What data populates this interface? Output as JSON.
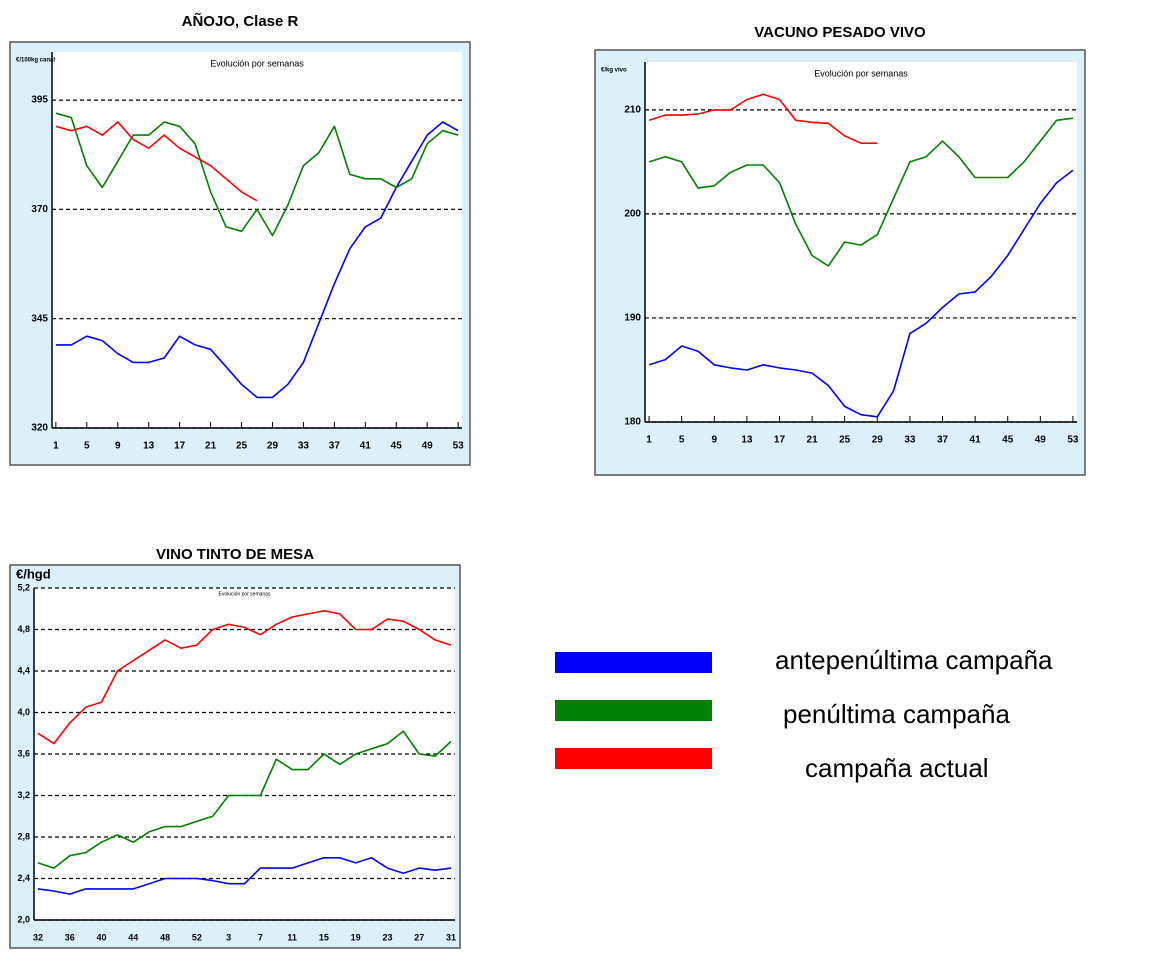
{
  "chart_data": [
    {
      "type": "line",
      "title": "AÑOJO, Clase R",
      "subtitle": "Evolución por semanas",
      "y_label": "€/100kg canal",
      "x": [
        1,
        3,
        5,
        7,
        9,
        11,
        13,
        15,
        17,
        19,
        21,
        23,
        25,
        27,
        29,
        31,
        33,
        35,
        37,
        39,
        41,
        43,
        45,
        47,
        49,
        51,
        53
      ],
      "xlim": [
        0.5,
        53.5
      ],
      "xticks": [
        1,
        5,
        9,
        13,
        17,
        21,
        25,
        29,
        33,
        37,
        41,
        45,
        49,
        53
      ],
      "ylim": [
        320,
        406
      ],
      "yticks": [
        320,
        345,
        370,
        395
      ],
      "grid": true,
      "series": [
        {
          "color": "#0000ff",
          "values": [
            339,
            339,
            341,
            340,
            337,
            335,
            335,
            336,
            341,
            339,
            338,
            334,
            330,
            327,
            327,
            330,
            335,
            344,
            353,
            361,
            366,
            368,
            375,
            381,
            387,
            390,
            388
          ]
        },
        {
          "color": "#008000",
          "values": [
            392,
            391,
            380,
            375,
            381,
            387,
            387,
            390,
            389,
            385,
            374,
            366,
            365,
            370,
            364,
            371,
            380,
            383,
            389,
            378,
            377,
            377,
            375,
            377,
            385,
            388,
            387
          ]
        },
        {
          "color": "#ff0000",
          "values": [
            389,
            388,
            389,
            387,
            390,
            386,
            384,
            387,
            384,
            382,
            380,
            377,
            374,
            372,
            null,
            null,
            null,
            null,
            null,
            null,
            null,
            null,
            null,
            null,
            null,
            null,
            null
          ]
        }
      ]
    },
    {
      "type": "line",
      "title": "VACUNO PESADO VIVO",
      "subtitle": "Evolución por semanas",
      "y_label": "€/kg vivo",
      "x": [
        1,
        3,
        5,
        7,
        9,
        11,
        13,
        15,
        17,
        19,
        21,
        23,
        25,
        27,
        29,
        31,
        33,
        35,
        37,
        39,
        41,
        43,
        45,
        47,
        49,
        51,
        53
      ],
      "xlim": [
        0.5,
        53.5
      ],
      "xticks": [
        1,
        5,
        9,
        13,
        17,
        21,
        25,
        29,
        33,
        37,
        41,
        45,
        49,
        53
      ],
      "ylim": [
        180,
        214.6
      ],
      "yticks": [
        180,
        190,
        200,
        210
      ],
      "grid": true,
      "series": [
        {
          "color": "#0000ff",
          "values": [
            185.5,
            186,
            187.3,
            186.8,
            185.5,
            185.2,
            185,
            185.5,
            185.2,
            185,
            184.7,
            183.5,
            181.5,
            180.7,
            180.5,
            183,
            188.5,
            189.5,
            191,
            192.3,
            192.5,
            194,
            196,
            198.5,
            201,
            203,
            204.2
          ]
        },
        {
          "color": "#008000",
          "values": [
            205,
            205.5,
            205,
            202.5,
            202.7,
            204,
            204.7,
            204.7,
            203,
            199,
            196,
            195,
            197.3,
            197,
            198,
            201.5,
            205,
            205.5,
            207,
            205.5,
            203.5,
            203.5,
            203.5,
            205,
            207,
            209,
            209.2
          ]
        },
        {
          "color": "#ff0000",
          "values": [
            209,
            209.5,
            209.5,
            209.6,
            210,
            210,
            211,
            211.5,
            211,
            209,
            208.8,
            208.7,
            207.5,
            206.8,
            206.8,
            null,
            null,
            null,
            null,
            null,
            null,
            null,
            null,
            null,
            null,
            null,
            null
          ]
        }
      ]
    },
    {
      "type": "line",
      "title": "VINO TINTO DE MESA",
      "subtitle": "Evolución por semanas",
      "y_label": "€/hgd",
      "categories": [
        "32",
        null,
        "36",
        null,
        "40",
        null,
        "44",
        null,
        "48",
        null,
        "52",
        null,
        "3",
        null,
        "7",
        null,
        "11",
        null,
        "15",
        null,
        "19",
        null,
        "23",
        null,
        "27",
        null,
        "31"
      ],
      "ylim": [
        2.0,
        5.2
      ],
      "yticks": [
        {
          "value": 2.0,
          "label": "2,0"
        },
        {
          "value": 2.4,
          "label": "2,4"
        },
        {
          "value": 2.8,
          "label": "2,8"
        },
        {
          "value": 3.2,
          "label": "3,2"
        },
        {
          "value": 3.6,
          "label": "3,6"
        },
        {
          "value": 4.0,
          "label": "4,0"
        },
        {
          "value": 4.4,
          "label": "4,4"
        },
        {
          "value": 4.8,
          "label": "4,8"
        },
        {
          "value": 5.2,
          "label": "5,2"
        }
      ],
      "grid": true,
      "series": [
        {
          "color": "#0000ff",
          "values": [
            2.3,
            2.28,
            2.25,
            2.3,
            2.3,
            2.3,
            2.3,
            2.35,
            2.4,
            2.4,
            2.4,
            2.38,
            2.35,
            2.35,
            2.5,
            2.5,
            2.5,
            2.55,
            2.6,
            2.6,
            2.55,
            2.6,
            2.5,
            2.45,
            2.5,
            2.48,
            2.5
          ]
        },
        {
          "color": "#008000",
          "values": [
            2.55,
            2.5,
            2.62,
            2.65,
            2.75,
            2.82,
            2.75,
            2.85,
            2.9,
            2.9,
            2.95,
            3.0,
            3.2,
            3.2,
            3.2,
            3.55,
            3.45,
            3.45,
            3.6,
            3.5,
            3.6,
            3.65,
            3.7,
            3.82,
            3.6,
            3.58,
            3.72
          ]
        },
        {
          "color": "#ff0000",
          "values": [
            3.8,
            3.7,
            3.9,
            4.05,
            4.1,
            4.4,
            4.5,
            4.6,
            4.7,
            4.62,
            4.65,
            4.8,
            4.85,
            4.82,
            4.75,
            4.85,
            4.92,
            4.95,
            4.98,
            4.95,
            4.8,
            4.8,
            4.9,
            4.88,
            4.8,
            4.7,
            4.65
          ]
        }
      ]
    }
  ],
  "legend": [
    {
      "label": "antepenúltima campaña",
      "color": "#0000ff"
    },
    {
      "label": "penúltima campaña",
      "color": "#008000"
    },
    {
      "label": "campaña actual",
      "color": "#ff0000"
    }
  ]
}
